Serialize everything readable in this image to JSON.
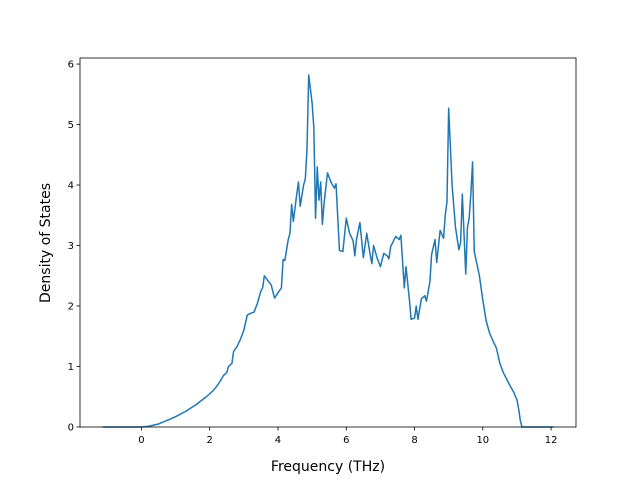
{
  "chart_data": {
    "type": "line",
    "xlabel": "Frequency (THz)",
    "ylabel": "Density of States",
    "xlim": [
      -1.8,
      12.73
    ],
    "ylim": [
      0,
      6.1
    ],
    "xticks": [
      0,
      2,
      4,
      6,
      8,
      10,
      12
    ],
    "yticks": [
      0,
      1,
      2,
      3,
      4,
      5,
      6
    ],
    "series": [
      {
        "color": "#1f77b4",
        "x": [
          -1.14,
          -0.5,
          0,
          0.2,
          0.5,
          0.8,
          1.0,
          1.3,
          1.6,
          1.9,
          2.1,
          2.2,
          2.3,
          2.4,
          2.5,
          2.55,
          2.65,
          2.7,
          2.8,
          2.9,
          3.0,
          3.1,
          3.2,
          3.3,
          3.4,
          3.5,
          3.55,
          3.6,
          3.7,
          3.8,
          3.9,
          4.0,
          4.1,
          4.15,
          4.2,
          4.3,
          4.35,
          4.4,
          4.45,
          4.55,
          4.6,
          4.65,
          4.75,
          4.8,
          4.85,
          4.9,
          5.0,
          5.05,
          5.1,
          5.15,
          5.2,
          5.25,
          5.3,
          5.35,
          5.45,
          5.55,
          5.65,
          5.7,
          5.8,
          5.9,
          6.0,
          6.1,
          6.2,
          6.25,
          6.3,
          6.4,
          6.5,
          6.6,
          6.7,
          6.75,
          6.8,
          6.9,
          7.0,
          7.1,
          7.2,
          7.25,
          7.3,
          7.45,
          7.55,
          7.6,
          7.7,
          7.75,
          7.85,
          7.9,
          8.0,
          8.05,
          8.1,
          8.2,
          8.3,
          8.35,
          8.45,
          8.5,
          8.6,
          8.65,
          8.75,
          8.85,
          8.9,
          8.95,
          9.0,
          9.1,
          9.2,
          9.3,
          9.35,
          9.4,
          9.5,
          9.55,
          9.6,
          9.65,
          9.7,
          9.75,
          9.9,
          10.0,
          10.1,
          10.2,
          10.3,
          10.4,
          10.5,
          10.6,
          10.8,
          10.9,
          11.0,
          11.05,
          11.1,
          11.15,
          12.07
        ],
        "values": [
          0,
          0,
          0,
          0.01,
          0.05,
          0.12,
          0.17,
          0.26,
          0.37,
          0.5,
          0.6,
          0.67,
          0.75,
          0.85,
          0.9,
          1.0,
          1.05,
          1.25,
          1.33,
          1.45,
          1.6,
          1.85,
          1.88,
          1.9,
          2.05,
          2.25,
          2.3,
          2.5,
          2.42,
          2.35,
          2.13,
          2.22,
          2.3,
          2.77,
          2.75,
          3.1,
          3.2,
          3.68,
          3.4,
          3.85,
          4.05,
          3.65,
          4.0,
          4.1,
          4.6,
          5.82,
          5.35,
          4.95,
          3.45,
          4.3,
          3.75,
          4.05,
          3.35,
          3.7,
          4.2,
          4.05,
          3.95,
          4.02,
          2.92,
          2.9,
          3.45,
          3.2,
          3.08,
          2.83,
          3.1,
          3.38,
          2.8,
          3.2,
          2.85,
          2.7,
          3.0,
          2.8,
          2.65,
          2.87,
          2.83,
          2.78,
          2.98,
          3.15,
          3.1,
          3.17,
          2.3,
          2.65,
          2.1,
          1.78,
          1.8,
          2.0,
          1.78,
          2.12,
          2.17,
          2.08,
          2.4,
          2.85,
          3.1,
          2.72,
          3.25,
          3.12,
          3.5,
          3.72,
          5.27,
          4.0,
          3.3,
          2.93,
          3.05,
          3.85,
          2.53,
          3.3,
          3.45,
          3.85,
          4.38,
          2.9,
          2.5,
          2.1,
          1.75,
          1.55,
          1.42,
          1.3,
          1.05,
          0.9,
          0.68,
          0.58,
          0.45,
          0.3,
          0.1,
          0,
          0
        ]
      }
    ]
  }
}
